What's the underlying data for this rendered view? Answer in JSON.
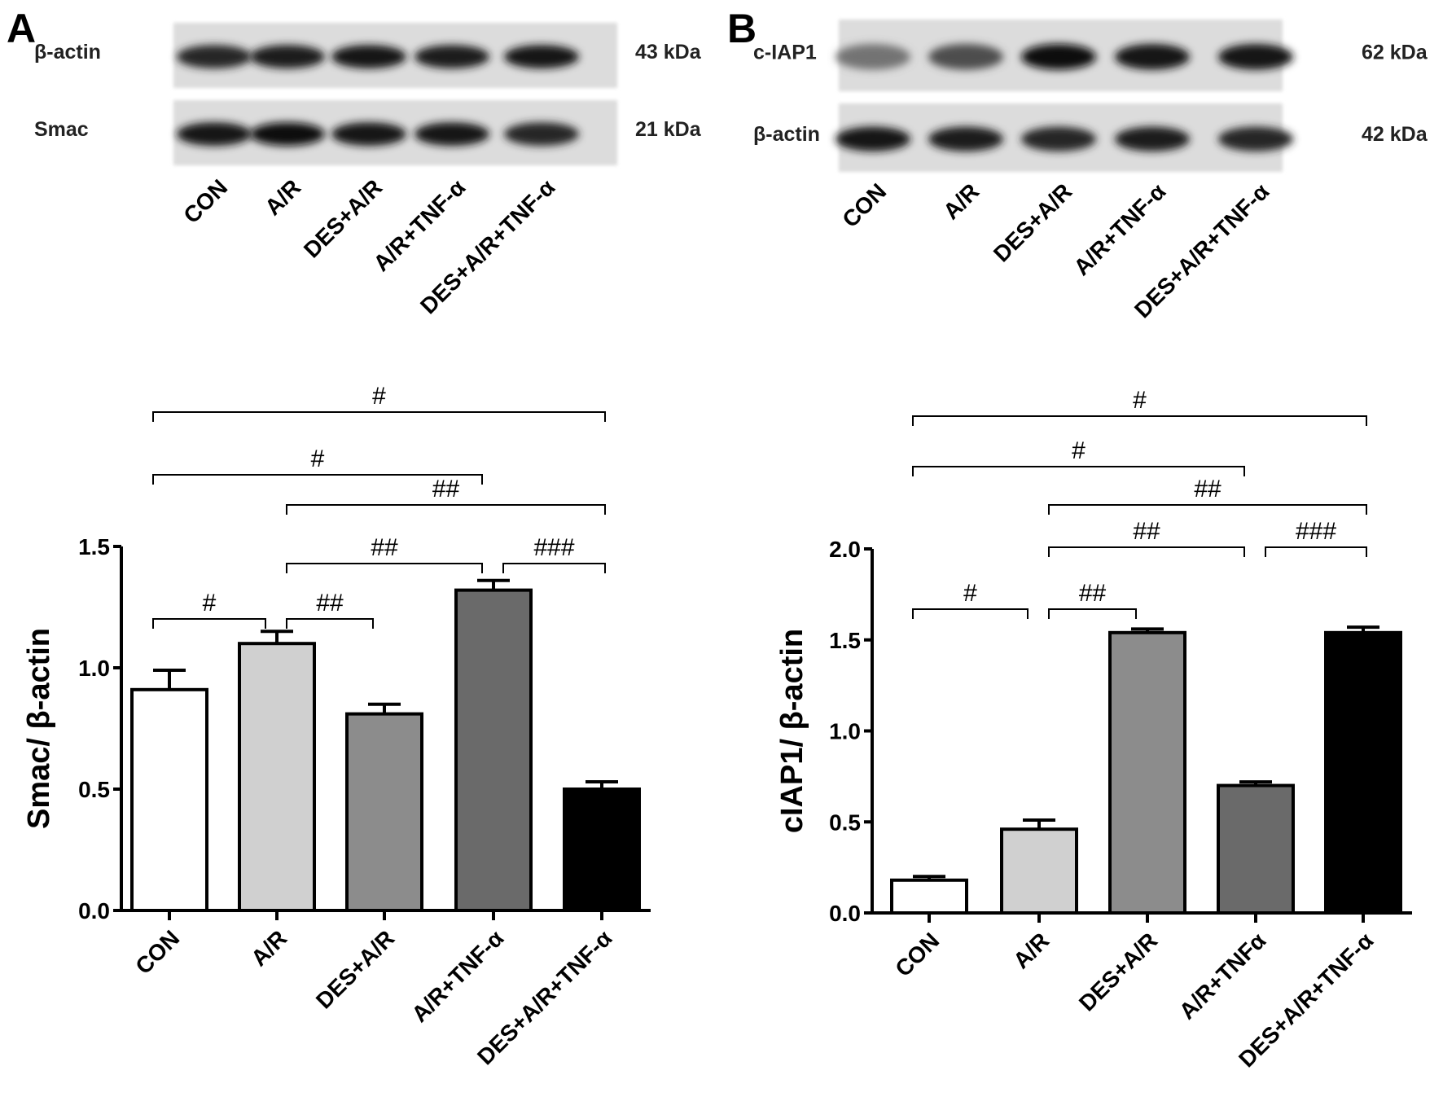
{
  "panels": [
    {
      "letter": "A",
      "blot": {
        "bands": [
          {
            "label": "β-actin",
            "mw": "43 kDa",
            "intensity": [
              0.85,
              0.88,
              0.9,
              0.88,
              0.92
            ]
          },
          {
            "label": "Smac",
            "mw": "21 kDa",
            "intensity": [
              0.92,
              0.95,
              0.9,
              0.9,
              0.85
            ]
          }
        ],
        "lanes": [
          "CON",
          "A/R",
          "DES+A/R",
          "A/R+TNF-α",
          "DES+A/R+TNF-α"
        ]
      },
      "chart_data": {
        "type": "bar",
        "categories": [
          "CON",
          "A/R",
          "DES+A/R",
          "A/R+TNF-α",
          "DES+A/R+TNF-α"
        ],
        "values": [
          0.91,
          1.1,
          0.81,
          1.32,
          0.5
        ],
        "errors": [
          0.08,
          0.05,
          0.04,
          0.04,
          0.03
        ],
        "fills": [
          "#ffffff",
          "#d0d0d0",
          "#8c8c8c",
          "#6a6a6a",
          "#000000"
        ],
        "ylabel": "Smac/ β-actin",
        "ylim": [
          0,
          1.5
        ],
        "yticks": [
          "0.0",
          "0.5",
          "1.0",
          "1.5"
        ],
        "yticks_values": [
          0,
          0.5,
          1.0,
          1.5
        ],
        "significance": [
          {
            "from": 0,
            "to": 1,
            "label": "#"
          },
          {
            "from": 1,
            "to": 2,
            "label": "##"
          },
          {
            "from": 1,
            "to": 3,
            "label": "##"
          },
          {
            "from": 3,
            "to": 4,
            "label": "###"
          },
          {
            "from": 1,
            "to": 4,
            "label": "##"
          },
          {
            "from": 0,
            "to": 3,
            "label": "#"
          },
          {
            "from": 0,
            "to": 4,
            "label": "#"
          }
        ]
      }
    },
    {
      "letter": "B",
      "blot": {
        "bands": [
          {
            "label": "c-IAP1",
            "mw": "62 kDa",
            "intensity": [
              0.55,
              0.7,
              0.95,
              0.9,
              0.92
            ]
          },
          {
            "label": "β-actin",
            "mw": "42 kDa",
            "intensity": [
              0.9,
              0.88,
              0.85,
              0.88,
              0.85
            ]
          }
        ],
        "lanes": [
          "CON",
          "A/R",
          "DES+A/R",
          "A/R+TNF-α",
          "DES+A/R+TNF-α"
        ]
      },
      "chart_data": {
        "type": "bar",
        "categories": [
          "CON",
          "A/R",
          "DES+A/R",
          "A/R+TNFα",
          "DES+A/R+TNF-α"
        ],
        "values": [
          0.18,
          0.46,
          1.54,
          0.7,
          1.54
        ],
        "errors": [
          0.02,
          0.05,
          0.02,
          0.02,
          0.03
        ],
        "fills": [
          "#ffffff",
          "#d0d0d0",
          "#8c8c8c",
          "#6a6a6a",
          "#000000"
        ],
        "ylabel": "cIAP1/ β-actin",
        "ylim": [
          0,
          2.0
        ],
        "yticks": [
          "0.0",
          "0.5",
          "1.0",
          "1.5",
          "2.0"
        ],
        "yticks_values": [
          0,
          0.5,
          1.0,
          1.5,
          2.0
        ],
        "significance": [
          {
            "from": 0,
            "to": 1,
            "label": "#"
          },
          {
            "from": 1,
            "to": 2,
            "label": "##"
          },
          {
            "from": 1,
            "to": 3,
            "label": "##"
          },
          {
            "from": 3,
            "to": 4,
            "label": "###"
          },
          {
            "from": 1,
            "to": 4,
            "label": "##"
          },
          {
            "from": 0,
            "to": 3,
            "label": "#"
          },
          {
            "from": 0,
            "to": 4,
            "label": "#"
          }
        ]
      }
    }
  ]
}
